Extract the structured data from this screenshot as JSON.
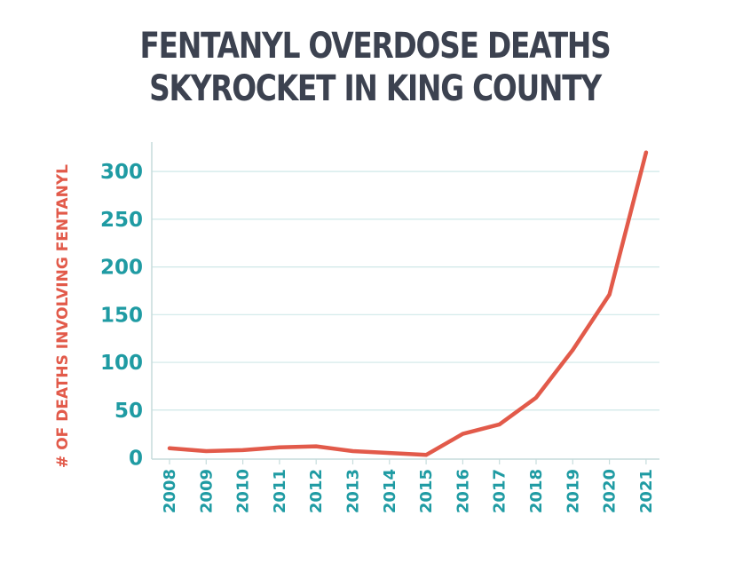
{
  "chart_data": {
    "type": "line",
    "title_line1": "FENTANYL OVERDOSE DEATHS",
    "title_line2": "SKYROCKET IN KING COUNTY",
    "xlabel": "",
    "ylabel": "# OF DEATHS INVOLVING FENTANYL",
    "x": [
      "2008",
      "2009",
      "2010",
      "2011",
      "2012",
      "2013",
      "2014",
      "2015",
      "2016",
      "2017",
      "2018",
      "2019",
      "2020",
      "2021"
    ],
    "series": [
      {
        "values": [
          10,
          7,
          8,
          11,
          12,
          7,
          5,
          3,
          25,
          35,
          63,
          113,
          171,
          320
        ]
      }
    ],
    "yticks": [
      "0",
      "50",
      "100",
      "150",
      "200",
      "250",
      "300"
    ],
    "ylim": [
      0,
      320
    ],
    "grid": true,
    "line_color": "#e25a4a",
    "tick_color": "#1f9ba3",
    "grid_color": "#cfe8e8"
  }
}
